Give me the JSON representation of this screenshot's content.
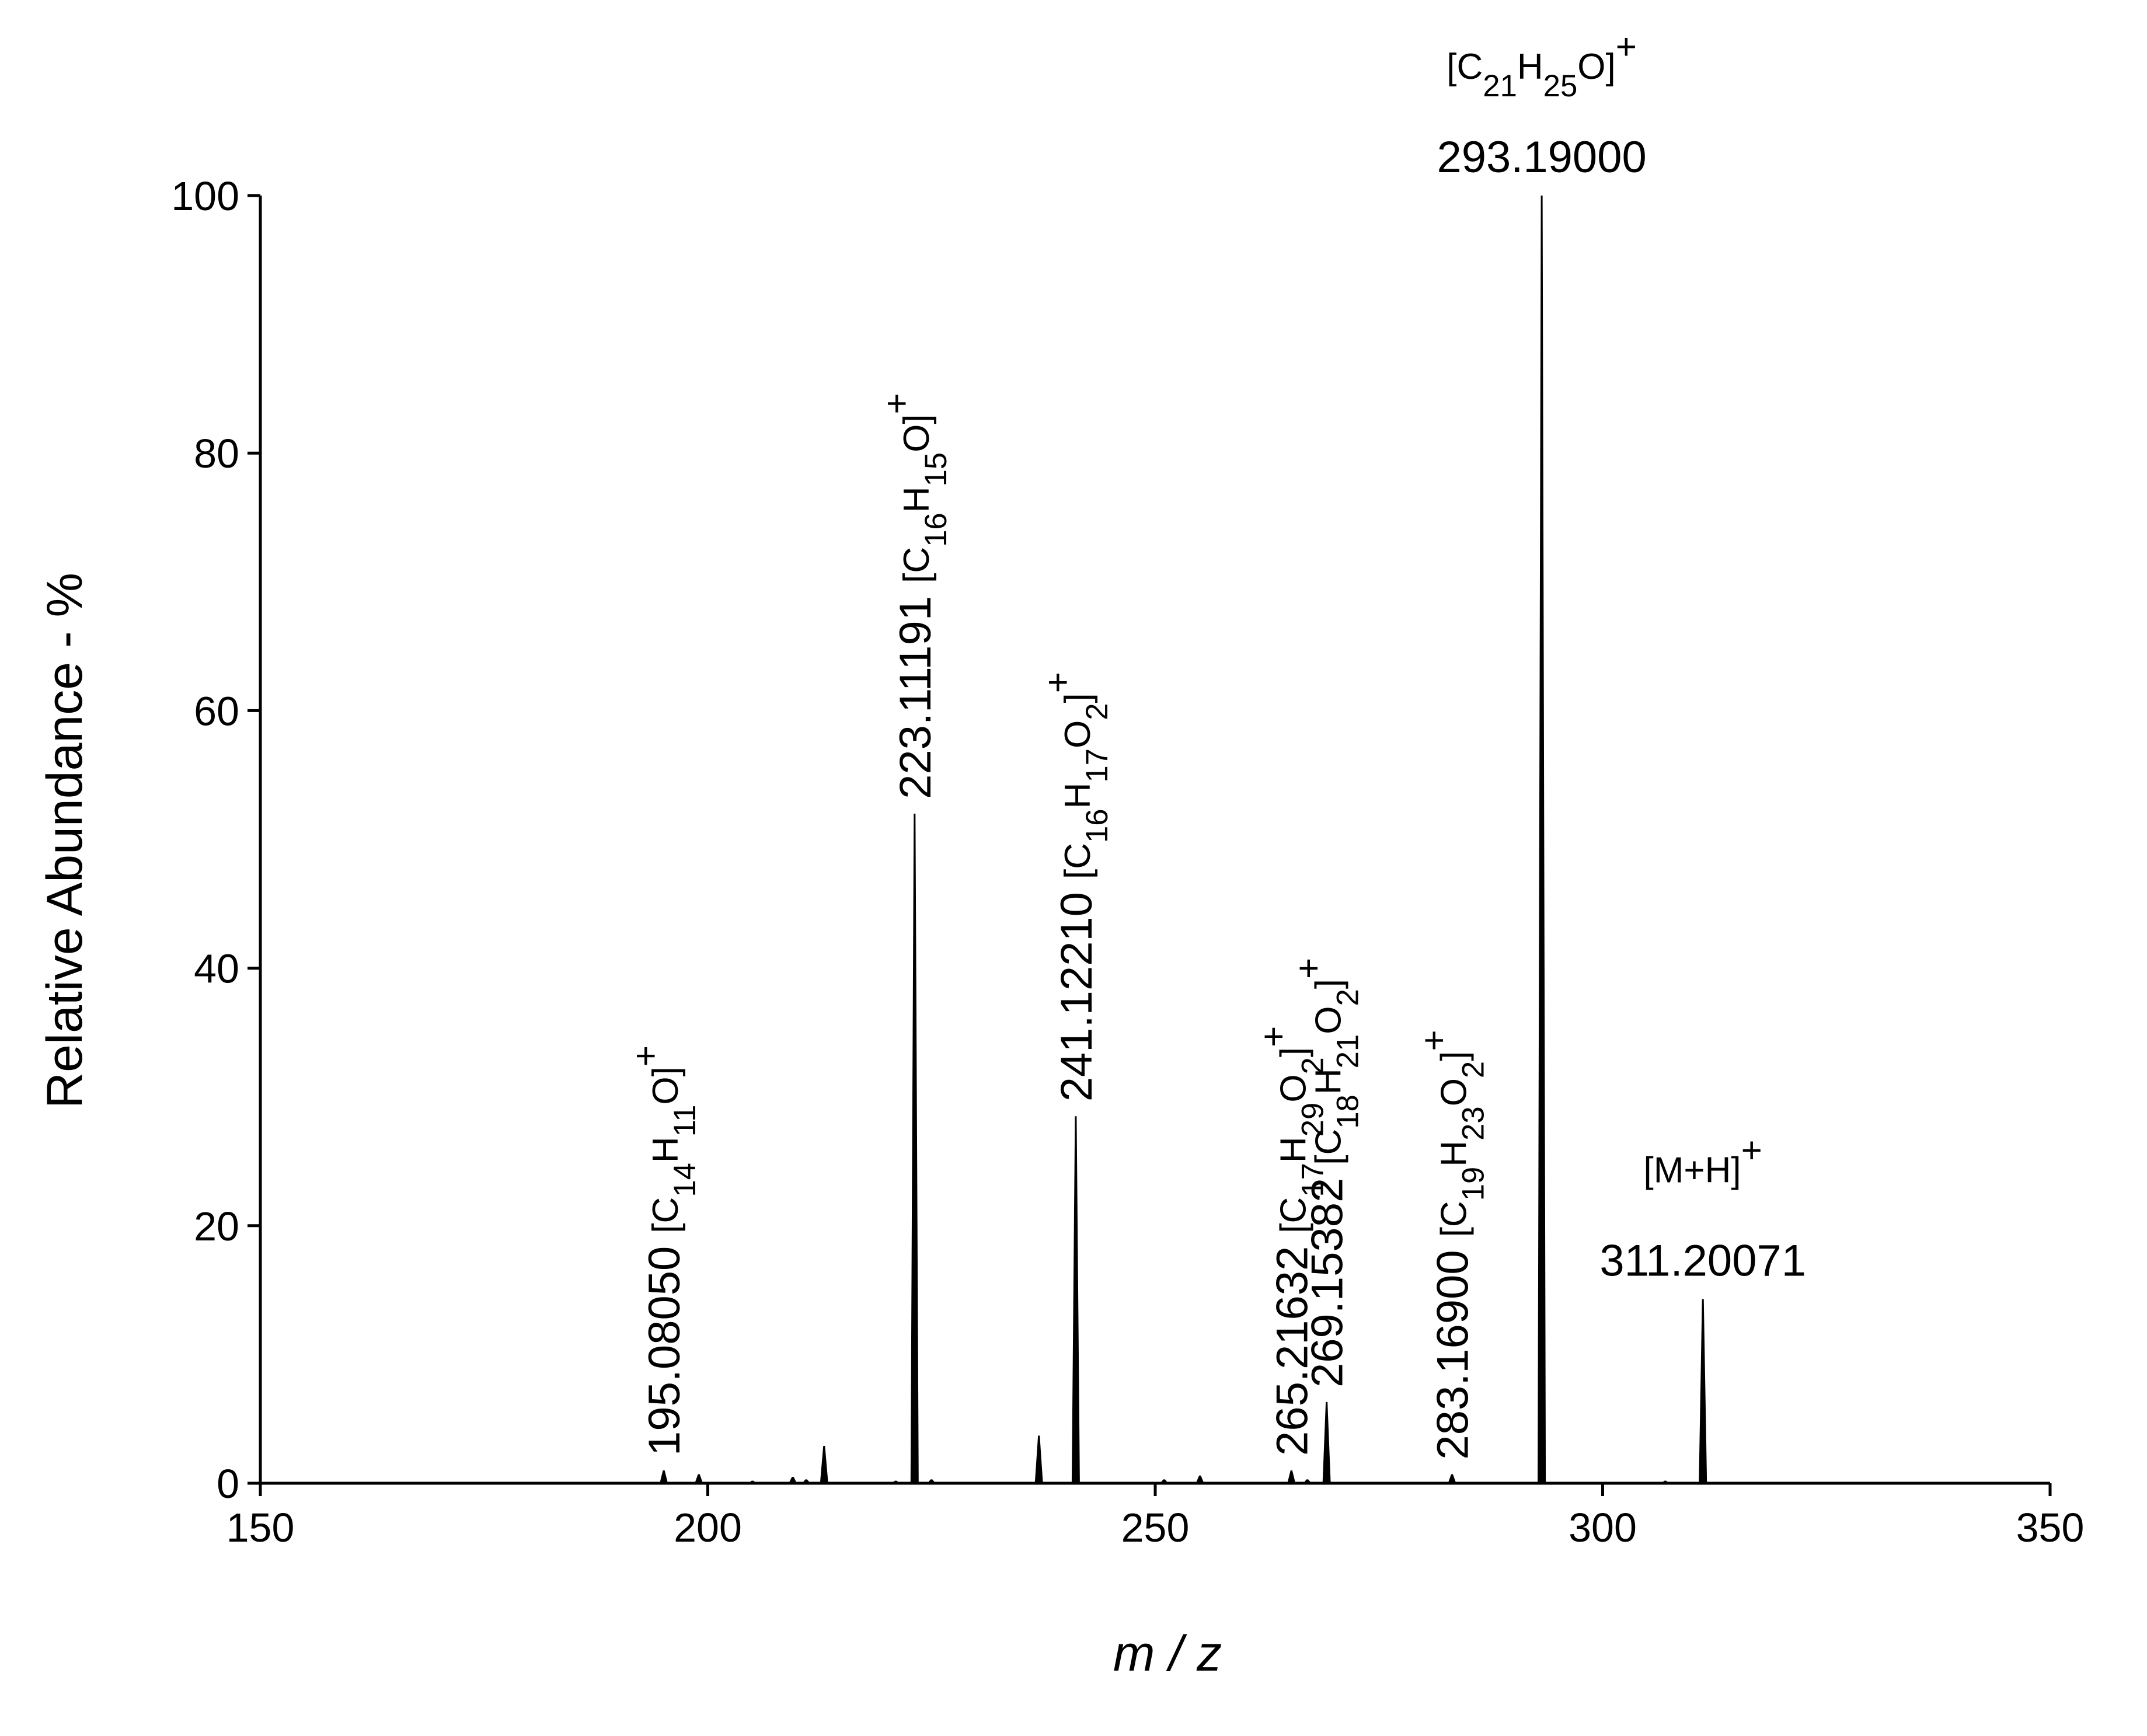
{
  "chart_data": {
    "type": "stem",
    "x_label": "m / z",
    "y_label": "Relative Abundance - %",
    "xlim": [
      150,
      350
    ],
    "xticks": [
      150,
      200,
      250,
      300,
      350
    ],
    "ylim": [
      0,
      100
    ],
    "yticks": [
      0,
      20,
      40,
      60,
      80,
      100
    ],
    "color": "#000000",
    "x": [
      157,
      169,
      185,
      195.0805,
      199,
      205,
      209.5,
      211,
      213,
      221,
      223.11191,
      225,
      237,
      241.1221,
      251,
      255,
      265.21632,
      267,
      269.15382,
      283.169,
      293.19,
      307,
      311.20071
    ],
    "values": [
      0.1,
      0.1,
      0.1,
      1,
      0.7,
      0.2,
      0.5,
      0.3,
      2.9,
      0.2,
      52,
      0.3,
      3.7,
      28.5,
      0.3,
      0.6,
      1,
      0.3,
      6.3,
      0.7,
      100,
      0.2,
      14.3
    ],
    "annotations": [
      {
        "x": 195.0805,
        "label": "195.08050",
        "formula": "[C14H11O]+"
      },
      {
        "x": 223.11191,
        "label": "223.11191",
        "formula": "[C16H15O]+"
      },
      {
        "x": 241.1221,
        "label": "241.12210",
        "formula": "[C16H17O2]+"
      },
      {
        "x": 265.21632,
        "label": "265.21632",
        "formula": "[C17H29O2]+"
      },
      {
        "x": 269.15382,
        "label": "269.15382",
        "formula": "[C18H21O2]+"
      },
      {
        "x": 283.169,
        "label": "283.16900",
        "formula": "[C19H23O2]+"
      },
      {
        "x": 293.19,
        "label": "293.19000",
        "formula": "[C21H25O]+"
      },
      {
        "x": 311.20071,
        "label": "311.20071",
        "formula": "[M+H]+"
      }
    ]
  }
}
